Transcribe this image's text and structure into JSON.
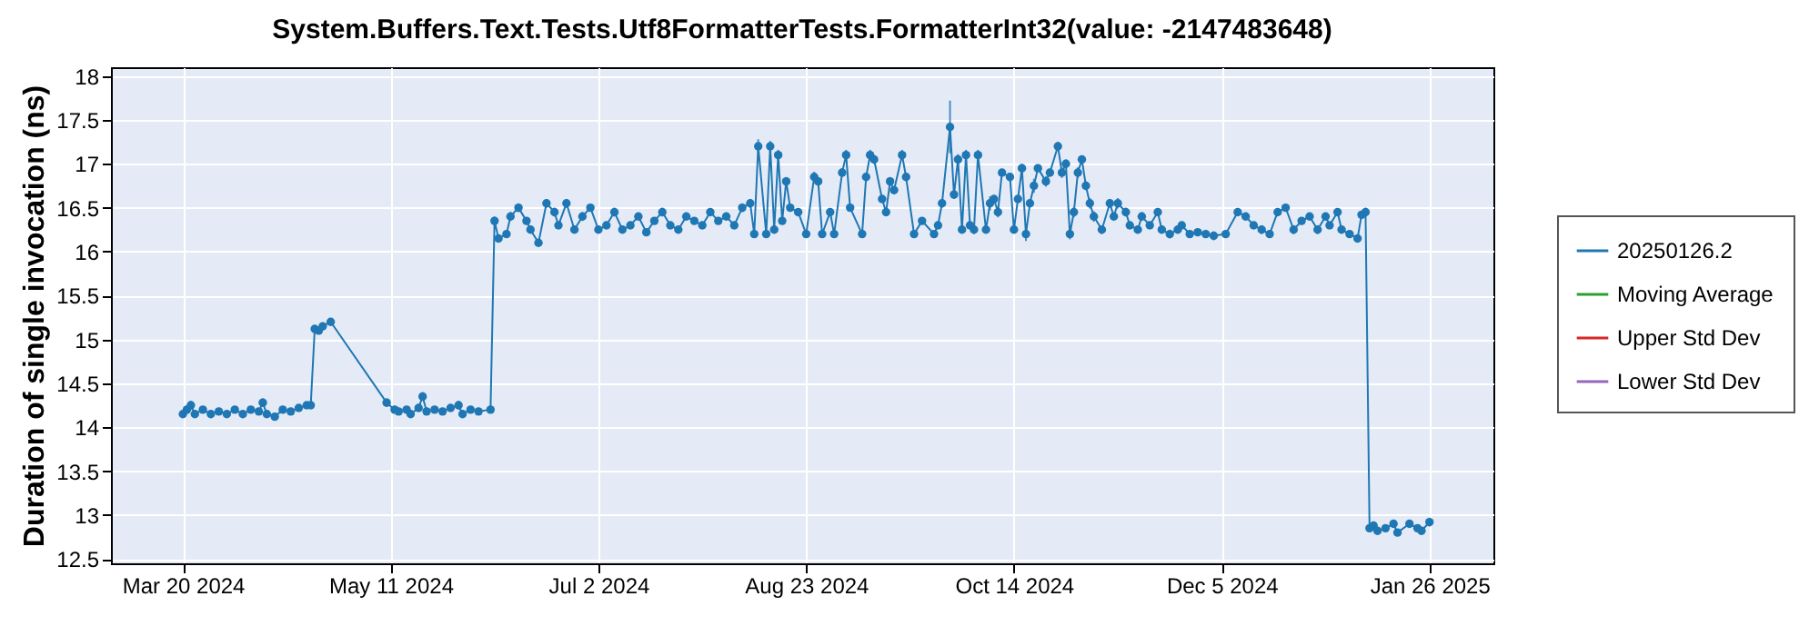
{
  "chart_data": {
    "type": "line",
    "title": "System.Buffers.Text.Tests.Utf8FormatterTests.FormatterInt32(value: -2147483648)",
    "ylabel": "Duration of single invocation (ns)",
    "xlim": [
      "2024-03-02",
      "2025-02-11"
    ],
    "xticks": [
      {
        "value": "2024-03-20",
        "label": "Mar 20 2024"
      },
      {
        "value": "2024-05-11",
        "label": "May 11 2024"
      },
      {
        "value": "2024-07-02",
        "label": "Jul 2 2024"
      },
      {
        "value": "2024-08-23",
        "label": "Aug 23 2024"
      },
      {
        "value": "2024-10-14",
        "label": "Oct 14 2024"
      },
      {
        "value": "2024-12-05",
        "label": "Dec 5 2024"
      },
      {
        "value": "2025-01-26",
        "label": "Jan 26 2025"
      }
    ],
    "ylim": [
      12.45,
      18.1
    ],
    "yticks": [
      12.5,
      13,
      13.5,
      14,
      14.5,
      15,
      15.5,
      16,
      16.5,
      17,
      17.5,
      18
    ],
    "grid": true,
    "legend": "right",
    "marker": "circle",
    "line_style": "solid",
    "x": [
      "2024-03-20",
      "2024-03-21",
      "2024-03-22",
      "2024-03-23",
      "2024-03-25",
      "2024-03-27",
      "2024-03-29",
      "2024-03-31",
      "2024-04-02",
      "2024-04-04",
      "2024-04-06",
      "2024-04-08",
      "2024-04-09",
      "2024-04-10",
      "2024-04-12",
      "2024-04-14",
      "2024-04-16",
      "2024-04-18",
      "2024-04-20",
      "2024-04-21",
      "2024-04-22",
      "2024-04-23",
      "2024-04-24",
      "2024-04-26",
      "2024-05-10",
      "2024-05-12",
      "2024-05-13",
      "2024-05-15",
      "2024-05-16",
      "2024-05-18",
      "2024-05-19",
      "2024-05-20",
      "2024-05-22",
      "2024-05-24",
      "2024-05-26",
      "2024-05-28",
      "2024-05-29",
      "2024-05-31",
      "2024-06-02",
      "2024-06-05",
      "2024-06-06",
      "2024-06-07",
      "2024-06-09",
      "2024-06-10",
      "2024-06-12",
      "2024-06-14",
      "2024-06-15",
      "2024-06-17",
      "2024-06-19",
      "2024-06-21",
      "2024-06-22",
      "2024-06-24",
      "2024-06-26",
      "2024-06-28",
      "2024-06-30",
      "2024-07-02",
      "2024-07-04",
      "2024-07-06",
      "2024-07-08",
      "2024-07-10",
      "2024-07-12",
      "2024-07-14",
      "2024-07-16",
      "2024-07-18",
      "2024-07-20",
      "2024-07-22",
      "2024-07-24",
      "2024-07-26",
      "2024-07-28",
      "2024-07-30",
      "2024-08-01",
      "2024-08-03",
      "2024-08-05",
      "2024-08-07",
      "2024-08-09",
      "2024-08-10",
      "2024-08-11",
      "2024-08-13",
      "2024-08-14",
      "2024-08-15",
      "2024-08-16",
      "2024-08-17",
      "2024-08-18",
      "2024-08-19",
      "2024-08-21",
      "2024-08-23",
      "2024-08-25",
      "2024-08-26",
      "2024-08-27",
      "2024-08-29",
      "2024-08-30",
      "2024-09-01",
      "2024-09-02",
      "2024-09-03",
      "2024-09-06",
      "2024-09-07",
      "2024-09-08",
      "2024-09-09",
      "2024-09-11",
      "2024-09-12",
      "2024-09-13",
      "2024-09-14",
      "2024-09-16",
      "2024-09-17",
      "2024-09-19",
      "2024-09-21",
      "2024-09-24",
      "2024-09-25",
      "2024-09-26",
      "2024-09-28",
      "2024-09-29",
      "2024-09-30",
      "2024-10-01",
      "2024-10-02",
      "2024-10-03",
      "2024-10-04",
      "2024-10-05",
      "2024-10-07",
      "2024-10-08",
      "2024-10-09",
      "2024-10-10",
      "2024-10-11",
      "2024-10-13",
      "2024-10-14",
      "2024-10-15",
      "2024-10-16",
      "2024-10-17",
      "2024-10-18",
      "2024-10-19",
      "2024-10-20",
      "2024-10-22",
      "2024-10-23",
      "2024-10-25",
      "2024-10-26",
      "2024-10-27",
      "2024-10-28",
      "2024-10-29",
      "2024-10-30",
      "2024-10-31",
      "2024-11-01",
      "2024-11-02",
      "2024-11-03",
      "2024-11-05",
      "2024-11-07",
      "2024-11-08",
      "2024-11-09",
      "2024-11-11",
      "2024-11-12",
      "2024-11-14",
      "2024-11-15",
      "2024-11-17",
      "2024-11-19",
      "2024-11-20",
      "2024-11-22",
      "2024-11-24",
      "2024-11-25",
      "2024-11-27",
      "2024-11-29",
      "2024-12-01",
      "2024-12-03",
      "2024-12-06",
      "2024-12-09",
      "2024-12-11",
      "2024-12-13",
      "2024-12-15",
      "2024-12-17",
      "2024-12-19",
      "2024-12-21",
      "2024-12-23",
      "2024-12-25",
      "2024-12-27",
      "2024-12-29",
      "2024-12-31",
      "2025-01-01",
      "2025-01-03",
      "2025-01-04",
      "2025-01-06",
      "2025-01-08",
      "2025-01-09",
      "2025-01-10",
      "2025-01-11",
      "2025-01-12",
      "2025-01-13",
      "2025-01-15",
      "2025-01-17",
      "2025-01-18",
      "2025-01-21",
      "2025-01-23",
      "2025-01-24",
      "2025-01-26"
    ],
    "series": [
      {
        "name": "20250126.2",
        "color": "#1f77b4",
        "values": [
          14.15,
          14.2,
          14.25,
          14.15,
          14.2,
          14.15,
          14.18,
          14.15,
          14.2,
          14.15,
          14.2,
          14.18,
          14.28,
          14.15,
          14.12,
          14.2,
          14.18,
          14.22,
          14.25,
          14.25,
          15.12,
          15.1,
          15.15,
          15.2,
          14.28,
          14.2,
          14.18,
          14.2,
          14.15,
          14.22,
          14.35,
          14.18,
          14.2,
          14.18,
          14.22,
          14.25,
          14.15,
          14.2,
          14.18,
          14.2,
          16.35,
          16.15,
          16.2,
          16.4,
          16.5,
          16.35,
          16.25,
          16.1,
          16.55,
          16.45,
          16.3,
          16.55,
          16.25,
          16.4,
          16.5,
          16.25,
          16.3,
          16.45,
          16.25,
          16.3,
          16.4,
          16.22,
          16.35,
          16.45,
          16.3,
          16.25,
          16.4,
          16.35,
          16.3,
          16.45,
          16.35,
          16.4,
          16.3,
          16.5,
          16.55,
          16.2,
          17.2,
          16.2,
          17.2,
          16.25,
          17.1,
          16.35,
          16.8,
          16.5,
          16.45,
          16.2,
          16.85,
          16.8,
          16.2,
          16.45,
          16.2,
          16.9,
          17.1,
          16.5,
          16.2,
          16.85,
          17.1,
          17.05,
          16.6,
          16.45,
          16.8,
          16.7,
          17.1,
          16.85,
          16.2,
          16.35,
          16.2,
          16.3,
          16.55,
          17.42,
          16.65,
          17.05,
          16.25,
          17.1,
          16.3,
          16.25,
          17.1,
          16.25,
          16.55,
          16.6,
          16.45,
          16.9,
          16.85,
          16.25,
          16.6,
          16.95,
          16.2,
          16.55,
          16.75,
          16.95,
          16.8,
          16.9,
          17.2,
          16.9,
          17.0,
          16.2,
          16.45,
          16.9,
          17.05,
          16.75,
          16.55,
          16.4,
          16.25,
          16.55,
          16.4,
          16.55,
          16.45,
          16.3,
          16.25,
          16.4,
          16.3,
          16.45,
          16.25,
          16.2,
          16.25,
          16.3,
          16.2,
          16.22,
          16.2,
          16.18,
          16.2,
          16.45,
          16.4,
          16.3,
          16.25,
          16.2,
          16.45,
          16.5,
          16.25,
          16.35,
          16.4,
          16.25,
          16.4,
          16.3,
          16.45,
          16.25,
          16.2,
          16.15,
          16.42,
          16.45,
          12.85,
          12.88,
          12.82,
          12.85,
          12.9,
          12.8,
          12.9,
          12.85,
          12.82,
          12.92
        ],
        "errors": [
          0.04,
          0.05,
          0.05,
          0.04,
          0.04,
          0.04,
          0.04,
          0.04,
          0.04,
          0.04,
          0.04,
          0.04,
          0.05,
          0.04,
          0.04,
          0.04,
          0.04,
          0.04,
          0.04,
          0.04,
          0.04,
          0.04,
          0.04,
          0.04,
          0.05,
          0.04,
          0.04,
          0.04,
          0.04,
          0.04,
          0.05,
          0.04,
          0.04,
          0.04,
          0.04,
          0.05,
          0.04,
          0.04,
          0.04,
          0.04,
          0.05,
          0.04,
          0.04,
          0.05,
          0.05,
          0.04,
          0.04,
          0.04,
          0.05,
          0.05,
          0.04,
          0.05,
          0.04,
          0.05,
          0.04,
          0.04,
          0.04,
          0.05,
          0.04,
          0.04,
          0.04,
          0.04,
          0.04,
          0.05,
          0.04,
          0.04,
          0.04,
          0.04,
          0.04,
          0.04,
          0.04,
          0.04,
          0.04,
          0.05,
          0.05,
          0.04,
          0.08,
          0.04,
          0.06,
          0.04,
          0.06,
          0.04,
          0.05,
          0.04,
          0.04,
          0.04,
          0.06,
          0.05,
          0.04,
          0.04,
          0.04,
          0.05,
          0.06,
          0.04,
          0.04,
          0.05,
          0.06,
          0.05,
          0.04,
          0.04,
          0.05,
          0.04,
          0.06,
          0.05,
          0.04,
          0.04,
          0.04,
          0.04,
          0.05,
          0.3,
          0.05,
          0.06,
          0.04,
          0.06,
          0.04,
          0.05,
          0.06,
          0.04,
          0.08,
          0.04,
          0.06,
          0.04,
          0.05,
          0.04,
          0.04,
          0.05,
          0.08,
          0.04,
          0.08,
          0.04,
          0.06,
          0.04,
          0.05,
          0.06,
          0.05,
          0.06,
          0.06,
          0.06,
          0.04,
          0.05,
          0.06,
          0.06,
          0.05,
          0.05,
          0.04,
          0.06,
          0.05,
          0.04,
          0.04,
          0.05,
          0.04,
          0.04,
          0.04,
          0.05,
          0.04,
          0.04,
          0.04,
          0.04,
          0.04,
          0.05,
          0.04,
          0.04,
          0.04,
          0.04,
          0.05,
          0.04,
          0.04,
          0.04,
          0.05,
          0.04,
          0.04,
          0.05,
          0.04,
          0.04,
          0.04,
          0.04,
          0.04,
          0.04,
          0.04,
          0.05,
          0.04,
          0.04,
          0.04,
          0.04,
          0.04,
          0.04,
          0.04,
          0.04,
          0.04,
          0.05
        ]
      },
      {
        "name": "Moving Average",
        "color": "#2ca02c",
        "values": [
          null,
          null,
          null,
          null,
          null,
          null,
          null,
          null,
          null,
          null,
          null,
          null,
          null,
          null,
          null,
          null,
          null,
          null,
          null,
          null,
          null,
          null,
          null,
          null,
          null,
          null,
          null,
          null,
          null,
          null,
          null,
          null,
          null,
          null,
          null,
          null,
          null,
          null,
          null,
          null,
          null,
          null,
          null,
          null,
          null,
          null,
          null,
          null,
          null,
          null,
          null,
          null,
          null,
          null,
          null,
          null,
          null,
          null,
          null,
          null,
          null,
          null,
          null,
          null,
          null,
          null,
          null,
          null,
          null,
          null,
          null,
          null,
          null,
          null,
          null,
          null,
          null,
          null,
          null,
          null,
          null,
          null,
          null,
          null,
          null,
          null,
          null,
          null,
          null,
          null,
          null,
          null,
          null,
          null,
          null,
          null,
          null,
          null,
          null,
          null,
          null,
          null,
          null,
          null,
          null,
          null,
          null,
          null,
          null,
          null,
          null,
          null,
          null,
          null,
          null,
          null,
          null,
          null,
          null,
          null,
          null,
          null,
          null,
          null,
          null,
          null,
          null,
          null,
          null,
          null,
          null,
          null,
          null,
          null,
          null,
          null,
          null,
          null,
          null,
          null,
          null,
          null,
          null,
          null,
          null,
          null,
          null,
          null,
          null,
          null,
          null,
          null,
          null,
          null,
          null,
          null,
          null,
          null,
          null,
          null,
          null,
          null,
          null,
          null,
          null,
          null,
          null,
          null,
          null,
          null,
          null,
          null,
          null,
          null,
          null,
          null,
          null,
          null,
          null,
          null,
          null,
          null,
          null,
          null,
          null,
          null,
          null,
          null,
          null,
          null
        ]
      },
      {
        "name": "Upper Std Dev",
        "color": "#d62728",
        "values": [
          null,
          null,
          null,
          null,
          null,
          null,
          null,
          null,
          null,
          null,
          null,
          null,
          null,
          null,
          null,
          null,
          null,
          null,
          null,
          null,
          null,
          null,
          null,
          null,
          null,
          null,
          null,
          null,
          null,
          null,
          null,
          null,
          null,
          null,
          null,
          null,
          null,
          null,
          null,
          null,
          null,
          null,
          null,
          null,
          null,
          null,
          null,
          null,
          null,
          null,
          null,
          null,
          null,
          null,
          null,
          null,
          null,
          null,
          null,
          null,
          null,
          null,
          null,
          null,
          null,
          null,
          null,
          null,
          null,
          null,
          null,
          null,
          null,
          null,
          null,
          null,
          null,
          null,
          null,
          null,
          null,
          null,
          null,
          null,
          null,
          null,
          null,
          null,
          null,
          null,
          null,
          null,
          null,
          null,
          null,
          null,
          null,
          null,
          null,
          null,
          null,
          null,
          null,
          null,
          null,
          null,
          null,
          null,
          null,
          null,
          null,
          null,
          null,
          null,
          null,
          null,
          null,
          null,
          null,
          null,
          null,
          null,
          null,
          null,
          null,
          null,
          null,
          null,
          null,
          null,
          null,
          null,
          null,
          null,
          null,
          null,
          null,
          null,
          null,
          null,
          null,
          null,
          null,
          null,
          null,
          null,
          null,
          null,
          null,
          null,
          null,
          null,
          null,
          null,
          null,
          null,
          null,
          null,
          null,
          null,
          null,
          null,
          null,
          null,
          null,
          null,
          null,
          null,
          null,
          null,
          null,
          null,
          null,
          null,
          null,
          null,
          null,
          null,
          null,
          null,
          null,
          null,
          null,
          null,
          null,
          null,
          null,
          null,
          null,
          null
        ]
      },
      {
        "name": "Lower Std Dev",
        "color": "#9467bd",
        "values": [
          null,
          null,
          null,
          null,
          null,
          null,
          null,
          null,
          null,
          null,
          null,
          null,
          null,
          null,
          null,
          null,
          null,
          null,
          null,
          null,
          null,
          null,
          null,
          null,
          null,
          null,
          null,
          null,
          null,
          null,
          null,
          null,
          null,
          null,
          null,
          null,
          null,
          null,
          null,
          null,
          null,
          null,
          null,
          null,
          null,
          null,
          null,
          null,
          null,
          null,
          null,
          null,
          null,
          null,
          null,
          null,
          null,
          null,
          null,
          null,
          null,
          null,
          null,
          null,
          null,
          null,
          null,
          null,
          null,
          null,
          null,
          null,
          null,
          null,
          null,
          null,
          null,
          null,
          null,
          null,
          null,
          null,
          null,
          null,
          null,
          null,
          null,
          null,
          null,
          null,
          null,
          null,
          null,
          null,
          null,
          null,
          null,
          null,
          null,
          null,
          null,
          null,
          null,
          null,
          null,
          null,
          null,
          null,
          null,
          null,
          null,
          null,
          null,
          null,
          null,
          null,
          null,
          null,
          null,
          null,
          null,
          null,
          null,
          null,
          null,
          null,
          null,
          null,
          null,
          null,
          null,
          null,
          null,
          null,
          null,
          null,
          null,
          null,
          null,
          null,
          null,
          null,
          null,
          null,
          null,
          null,
          null,
          null,
          null,
          null,
          null,
          null,
          null,
          null,
          null,
          null,
          null,
          null,
          null,
          null,
          null,
          null,
          null,
          null,
          null,
          null,
          null,
          null,
          null,
          null,
          null,
          null,
          null,
          null,
          null,
          null,
          null,
          null,
          null,
          null,
          null,
          null,
          null,
          null,
          null,
          null,
          null,
          null,
          null,
          null
        ]
      }
    ]
  }
}
